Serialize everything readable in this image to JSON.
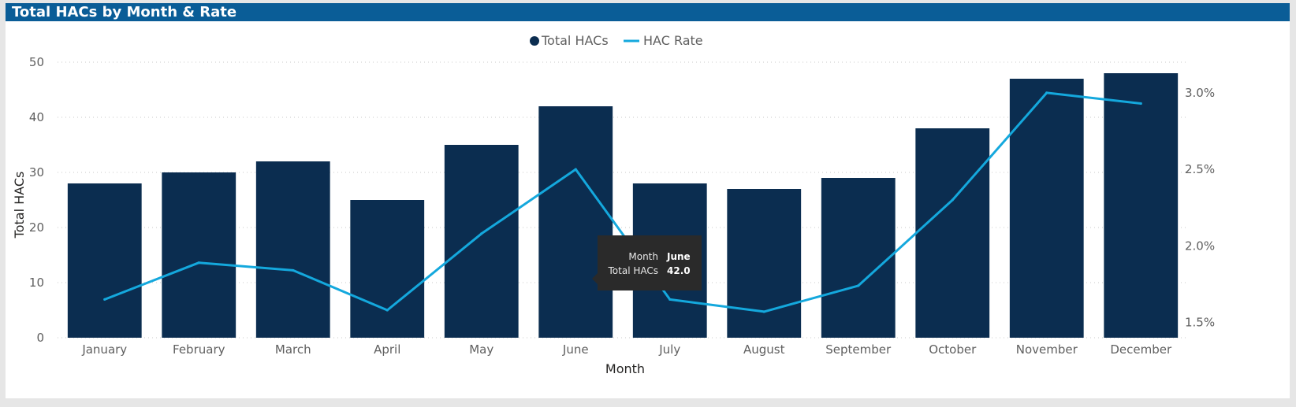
{
  "title": "Total HACs by Month & Rate",
  "colors": {
    "bar": "#0b2d50",
    "line": "#14a8dd",
    "header": "#0a5d97",
    "tooltip": "#2a2a2a"
  },
  "legend": {
    "items": [
      {
        "label": "Total HACs",
        "shape": "circle"
      },
      {
        "label": "HAC Rate",
        "shape": "line"
      }
    ]
  },
  "tooltip": {
    "rows": [
      {
        "key": "Month",
        "value": "June"
      },
      {
        "key": "Total HACs",
        "value": "42.0"
      }
    ]
  },
  "chart_data": {
    "type": "bar",
    "title": "Total HACs by Month & Rate",
    "xlabel": "Month",
    "ylabel": "Total HACs",
    "categories": [
      "January",
      "February",
      "March",
      "April",
      "May",
      "June",
      "July",
      "August",
      "September",
      "October",
      "November",
      "December"
    ],
    "series": [
      {
        "name": "Total HACs",
        "type": "bar",
        "axis": "left",
        "values": [
          28,
          30,
          32,
          25,
          35,
          42,
          28,
          27,
          29,
          38,
          47,
          48
        ]
      },
      {
        "name": "HAC Rate",
        "type": "line",
        "axis": "right",
        "values": [
          1.65,
          1.89,
          1.84,
          1.58,
          2.08,
          2.5,
          1.65,
          1.57,
          1.74,
          2.3,
          3.0,
          2.93
        ]
      }
    ],
    "ylim": [
      0,
      50
    ],
    "yticks": [
      0,
      10,
      20,
      30,
      40,
      50
    ],
    "y2lim": [
      1.4,
      3.2
    ],
    "y2ticks": [
      {
        "value": 1.5,
        "label": "1.5%"
      },
      {
        "value": 2.0,
        "label": "2.0%"
      },
      {
        "value": 2.5,
        "label": "2.5%"
      },
      {
        "value": 3.0,
        "label": "3.0%"
      }
    ],
    "grid": true,
    "legend_position": "top-center"
  }
}
